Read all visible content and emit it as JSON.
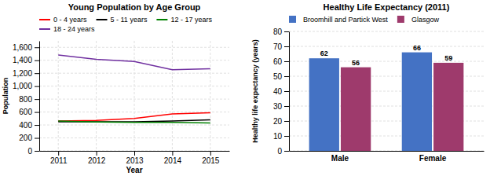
{
  "chart_data": [
    {
      "type": "line",
      "title": "Young Population by Age Group",
      "xlabel": "Year",
      "ylabel": "Population",
      "x": [
        2011,
        2012,
        2013,
        2014,
        2015
      ],
      "xlim": [
        2010.5,
        2015.5
      ],
      "xticks": [
        2011,
        2012,
        2013,
        2014,
        2015
      ],
      "ylim": [
        0,
        1700
      ],
      "yticks": [
        0,
        200,
        400,
        600,
        800,
        {
          "value": 1000,
          "label": "1,000"
        },
        {
          "value": 1200,
          "label": "1,200"
        },
        {
          "value": 1400,
          "label": "1,400"
        },
        {
          "value": 1600,
          "label": "1,600"
        }
      ],
      "grid": true,
      "legend": "top",
      "series": [
        {
          "name": "0 - 4 years",
          "color": "#ff0000",
          "values": [
            460,
            470,
            500,
            570,
            590
          ]
        },
        {
          "name": "5 - 11 years",
          "color": "#000000",
          "values": [
            450,
            450,
            450,
            460,
            480
          ]
        },
        {
          "name": "12 - 17 years",
          "color": "#008000",
          "values": [
            460,
            445,
            440,
            440,
            430
          ]
        },
        {
          "name": "18 - 24 years",
          "color": "#7030a0",
          "values": [
            1480,
            1415,
            1380,
            1255,
            1270
          ]
        }
      ]
    },
    {
      "type": "bar",
      "title": "Healthy Life Expectancy (2011)",
      "ylabel": "Healthy life expectancy (years)",
      "categories": [
        "Male",
        "Female"
      ],
      "ylim": [
        0,
        80
      ],
      "yticks": [
        0,
        10,
        20,
        30,
        40,
        50,
        60,
        70,
        80
      ],
      "grid": "y",
      "legend": "top",
      "data_labels": true,
      "series": [
        {
          "name": "Broomhill and Partick West",
          "color": "#4472c4",
          "values": [
            62,
            66
          ]
        },
        {
          "name": "Glasgow",
          "color": "#9e3a6c",
          "values": [
            56,
            59
          ]
        }
      ]
    }
  ]
}
